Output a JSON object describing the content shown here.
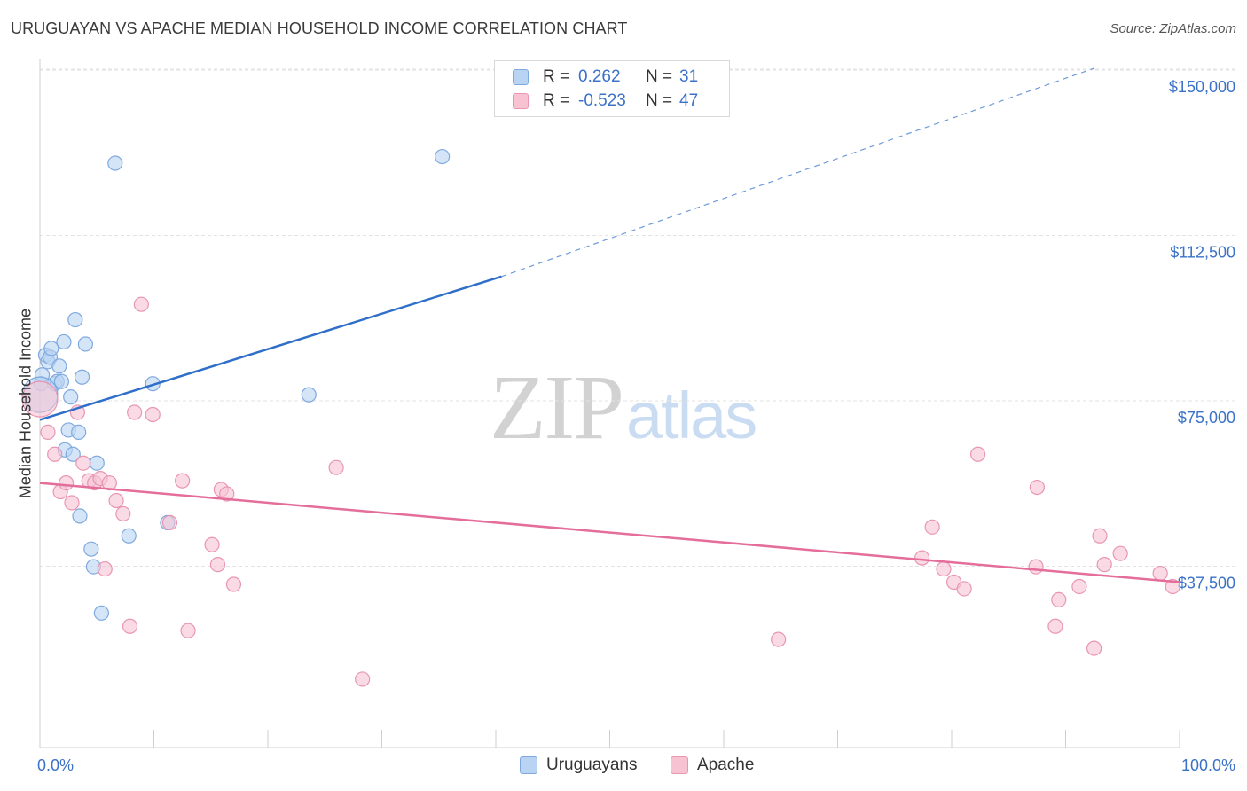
{
  "title": "URUGUAYAN VS APACHE MEDIAN HOUSEHOLD INCOME CORRELATION CHART",
  "source": "Source: ZipAtlas.com",
  "watermark": {
    "zip": "ZIP",
    "atlas": "atlas"
  },
  "colors": {
    "blue_fill": "#b9d3f3",
    "blue_stroke": "#7fa9de",
    "blue_line": "#2f6fc9",
    "pink_fill": "#f7c3d3",
    "pink_stroke": "#e996b1",
    "pink_line": "#e46d9a",
    "axis_text": "#3b72c7",
    "grid": "#e3e3e3"
  },
  "legend": {
    "rows": [
      {
        "r_label": "R =",
        "r_value": "0.262",
        "n_label": "N =",
        "n_value": "31",
        "series": "blue"
      },
      {
        "r_label": "R =",
        "r_value": "-0.523",
        "n_label": "N =",
        "n_value": "47",
        "series": "pink"
      }
    ]
  },
  "bottom_legend": {
    "uruguayans": "Uruguayans",
    "apache": "Apache"
  },
  "chart_data": {
    "type": "scatter",
    "title": "URUGUAYAN VS APACHE MEDIAN HOUSEHOLD INCOME CORRELATION CHART",
    "xlabel": "",
    "ylabel": "Median Household Income",
    "xlim": [
      0,
      100
    ],
    "ylim": [
      0,
      157000
    ],
    "x_tick_labels": [
      "0.0%",
      "100.0%"
    ],
    "y_ticks": [
      37500,
      75000,
      112500,
      150000
    ],
    "y_tick_labels": [
      "$37,500",
      "$75,000",
      "$112,500",
      "$150,000"
    ],
    "grid": true,
    "series": [
      {
        "name": "Uruguayans",
        "color": "blue",
        "points": [
          [
            0.1,
            82500
          ],
          [
            0.2,
            84500
          ],
          [
            0.5,
            89000
          ],
          [
            0.7,
            87500
          ],
          [
            0.9,
            88500
          ],
          [
            1.0,
            90500
          ],
          [
            1.3,
            82500
          ],
          [
            1.5,
            83000
          ],
          [
            1.7,
            86500
          ],
          [
            1.9,
            83000
          ],
          [
            2.1,
            92000
          ],
          [
            2.2,
            67500
          ],
          [
            2.5,
            72000
          ],
          [
            2.7,
            79500
          ],
          [
            2.9,
            66500
          ],
          [
            3.1,
            97000
          ],
          [
            3.4,
            71500
          ],
          [
            3.5,
            52500
          ],
          [
            3.7,
            84000
          ],
          [
            4.0,
            91500
          ],
          [
            4.5,
            45000
          ],
          [
            4.7,
            41000
          ],
          [
            5.0,
            64500
          ],
          [
            5.4,
            30500
          ],
          [
            6.6,
            132500
          ],
          [
            7.8,
            48000
          ],
          [
            9.9,
            82500
          ],
          [
            11.2,
            51000
          ],
          [
            23.6,
            80000
          ],
          [
            35.3,
            134000
          ],
          [
            0.0,
            80000
          ]
        ],
        "trend": {
          "x0": 0,
          "y0": 74300,
          "x1": 40.5,
          "y1": 106800,
          "dash_x1": 92.5,
          "dash_y1": 150000
        }
      },
      {
        "name": "Apache",
        "color": "pink",
        "points": [
          [
            0.0,
            79000
          ],
          [
            0.7,
            71500
          ],
          [
            1.3,
            66500
          ],
          [
            1.8,
            58000
          ],
          [
            2.3,
            60000
          ],
          [
            2.8,
            55500
          ],
          [
            3.3,
            76000
          ],
          [
            3.8,
            64500
          ],
          [
            4.3,
            60500
          ],
          [
            4.8,
            60000
          ],
          [
            5.3,
            61000
          ],
          [
            5.7,
            40500
          ],
          [
            6.1,
            60000
          ],
          [
            6.7,
            56000
          ],
          [
            7.3,
            53000
          ],
          [
            7.9,
            27500
          ],
          [
            8.3,
            76000
          ],
          [
            8.9,
            100500
          ],
          [
            9.9,
            75500
          ],
          [
            11.4,
            51000
          ],
          [
            12.5,
            60500
          ],
          [
            13.0,
            26500
          ],
          [
            15.1,
            46000
          ],
          [
            15.6,
            41500
          ],
          [
            15.9,
            58500
          ],
          [
            16.4,
            57500
          ],
          [
            17.0,
            37000
          ],
          [
            26.0,
            63500
          ],
          [
            28.3,
            15500
          ],
          [
            64.8,
            24500
          ],
          [
            77.4,
            43000
          ],
          [
            78.3,
            50000
          ],
          [
            79.3,
            40500
          ],
          [
            80.2,
            37500
          ],
          [
            81.1,
            36000
          ],
          [
            82.3,
            66500
          ],
          [
            87.4,
            41000
          ],
          [
            87.5,
            59000
          ],
          [
            89.1,
            27500
          ],
          [
            89.4,
            33500
          ],
          [
            91.2,
            36500
          ],
          [
            92.5,
            22500
          ],
          [
            93.0,
            48000
          ],
          [
            93.4,
            41500
          ],
          [
            94.8,
            44000
          ],
          [
            98.3,
            39500
          ],
          [
            99.4,
            36500
          ]
        ],
        "trend": {
          "x0": 0,
          "y0": 60000,
          "x1": 100,
          "y1": 37500
        }
      }
    ]
  }
}
